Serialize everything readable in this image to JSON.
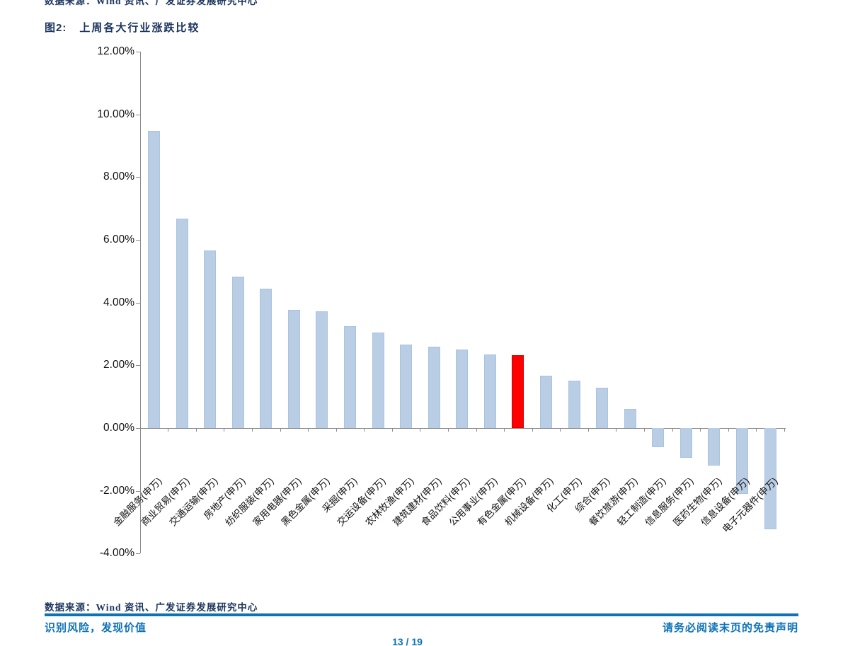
{
  "page": {
    "top_clipped_text": "数据来源：Wind 资讯、广发证券发展研究中心",
    "figure_label": "图2:",
    "figure_title": "上周各大行业涨跌比较",
    "source_text": "数据来源：Wind 资讯、广发证券发展研究中心",
    "footer_left": "识别风险，发现价值",
    "footer_right": "请务必阅读末页的免责声明",
    "page_number": "13 / 19"
  },
  "colors": {
    "navy": "#1c355e",
    "blue": "#0d72b9",
    "bar_fill": "#b9cde5",
    "bar_border": "#a9c3df",
    "highlight": "#fe0000",
    "axis": "#8c8c8c"
  },
  "chart_data": {
    "type": "bar",
    "title": "上周各大行业涨跌比较",
    "categories": [
      "金融服务(申万)",
      "商业贸易(申万)",
      "交通运输(申万)",
      "房地产(申万)",
      "纺织服装(申万)",
      "家用电器(申万)",
      "黑色金属(申万)",
      "采掘(申万)",
      "交运设备(申万)",
      "农林牧渔(申万)",
      "建筑建材(申万)",
      "食品饮料(申万)",
      "公用事业(申万)",
      "有色金属(申万)",
      "机械设备(申万)",
      "化工(申万)",
      "综合(申万)",
      "餐饮旅游(申万)",
      "轻工制造(申万)",
      "信息服务(申万)",
      "医药生物(申万)",
      "信息设备(申万)",
      "电子元器件(申万)"
    ],
    "values": [
      9.47,
      6.68,
      5.66,
      4.82,
      4.44,
      3.77,
      3.72,
      3.25,
      3.05,
      2.65,
      2.59,
      2.51,
      2.34,
      2.32,
      1.66,
      1.5,
      1.28,
      0.62,
      -0.61,
      -0.95,
      -1.19,
      -2.1,
      -3.22
    ],
    "highlight_index": 13,
    "highlighted_category": "有色金属(申万)",
    "unit": "%",
    "ylim": [
      -4,
      12
    ],
    "ytick_step": 2,
    "ytick_labels": [
      "12.00%",
      "10.00%",
      "8.00%",
      "6.00%",
      "4.00%",
      "2.00%",
      "0.00%",
      "-2.00%",
      "-4.00%"
    ],
    "grid": false,
    "legend": null,
    "bar_color": "#b9cde5",
    "highlight_color": "#fe0000"
  }
}
